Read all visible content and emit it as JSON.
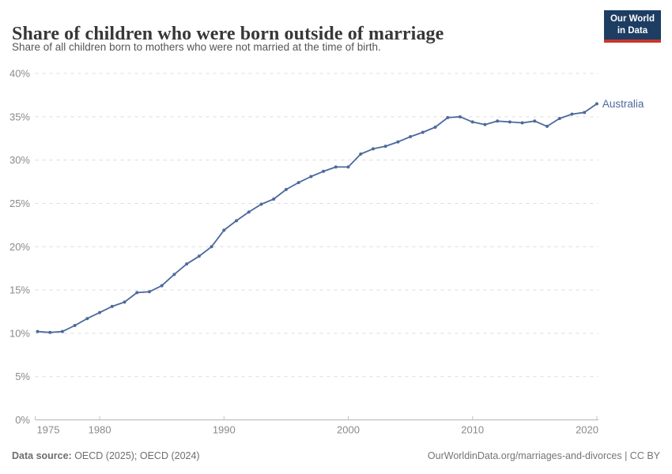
{
  "header": {
    "title": "Share of children who were born outside of marriage",
    "subtitle": "Share of all children born to mothers who were not married at the time of birth.",
    "logo": {
      "line1": "Our World",
      "line2": "in Data"
    }
  },
  "footer": {
    "datasource_label": "Data source:",
    "datasource_value": " OECD (2025); OECD (2024)",
    "attribution": "OurWorldinData.org/marriages-and-divorces | CC BY"
  },
  "colors": {
    "series": "#4C6A9C",
    "gridline": "#dcdcdc",
    "axis_line": "#b3b3b3",
    "tick_mark": "#c4c4c4",
    "tick_text": "#8a8a8a",
    "logo_bg": "#1d3d63",
    "logo_red": "#c7362c"
  },
  "chart_data": {
    "type": "line",
    "title": "Share of children who were born outside of marriage",
    "subtitle": "Share of all children born to mothers who were not married at the time of birth.",
    "xlabel": "",
    "ylabel": "",
    "xlim": [
      1975,
      2021
    ],
    "ylim": [
      0,
      40
    ],
    "grid": "horizontal-dashed",
    "legend_position": "end-of-line-label",
    "x_ticks": [
      1975,
      1980,
      1990,
      2000,
      2010,
      2020
    ],
    "y_ticks": [
      0,
      5,
      10,
      15,
      20,
      25,
      30,
      35,
      40
    ],
    "y_tick_suffix": "%",
    "series": [
      {
        "name": "Australia",
        "color": "#4C6A9C",
        "x": [
          1975,
          1976,
          1977,
          1978,
          1979,
          1980,
          1981,
          1982,
          1983,
          1984,
          1985,
          1986,
          1987,
          1988,
          1989,
          1990,
          1991,
          1992,
          1993,
          1994,
          1995,
          1996,
          1997,
          1998,
          1999,
          2000,
          2001,
          2002,
          2003,
          2004,
          2005,
          2006,
          2007,
          2008,
          2009,
          2010,
          2011,
          2012,
          2013,
          2014,
          2015,
          2016,
          2017,
          2018,
          2019,
          2020
        ],
        "values": [
          10.2,
          10.1,
          10.2,
          10.9,
          11.7,
          12.4,
          13.1,
          13.6,
          14.7,
          14.8,
          15.5,
          16.8,
          18.0,
          18.9,
          20.0,
          21.9,
          23.0,
          24.0,
          24.9,
          25.5,
          26.6,
          27.4,
          28.1,
          28.7,
          29.2,
          29.2,
          30.7,
          31.3,
          31.6,
          32.1,
          32.7,
          33.2,
          33.8,
          34.9,
          35.0,
          34.4,
          34.1,
          34.5,
          34.4,
          34.3,
          34.5,
          33.9,
          34.8,
          35.3,
          35.5,
          36.5
        ]
      }
    ]
  }
}
